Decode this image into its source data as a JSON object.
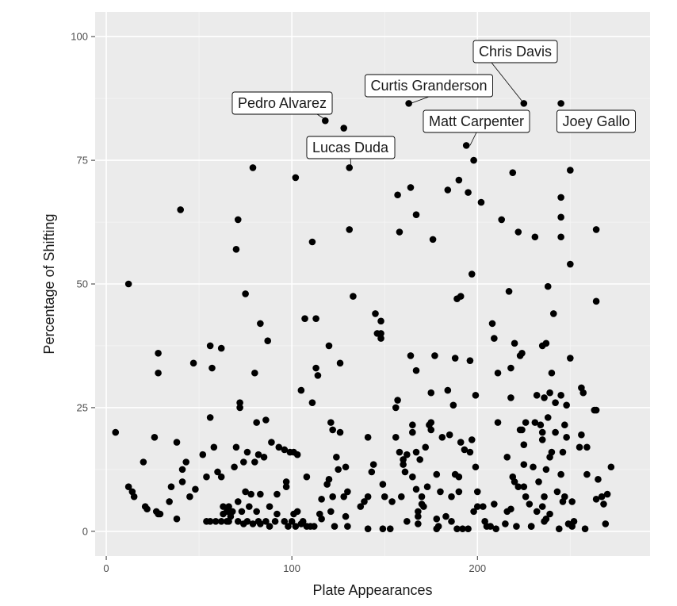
{
  "chart_data": {
    "type": "scatter",
    "title": "",
    "xlabel": "Plate Appearances",
    "ylabel": "Percentage of Shifting",
    "xlim": [
      -6,
      293
    ],
    "ylim": [
      -5,
      105
    ],
    "x_ticks": [
      0,
      100,
      200
    ],
    "y_ticks": [
      0,
      25,
      50,
      75,
      100
    ],
    "grid": true,
    "colors": {
      "panel": "#ebebeb",
      "grid_major": "#ffffff",
      "grid_minor": "#f5f5f5",
      "point": "#000000",
      "tick": "#4d4d4d"
    },
    "annotations": [
      {
        "text": "Chris Davis",
        "x": 225,
        "y": 86.5
      },
      {
        "text": "Curtis Granderson",
        "x": 164,
        "y": 86.5
      },
      {
        "text": "Pedro Alvarez",
        "x": 119,
        "y": 83
      },
      {
        "text": "Matt Carpenter",
        "x": 196,
        "y": 78
      },
      {
        "text": "Joey Gallo",
        "x": 246,
        "y": 86.5
      },
      {
        "text": "Lucas Duda",
        "x": 132,
        "y": 73.5
      }
    ],
    "points": [
      [
        5,
        20
      ],
      [
        12,
        50
      ],
      [
        12,
        9
      ],
      [
        14,
        8
      ],
      [
        15,
        7
      ],
      [
        20,
        14
      ],
      [
        21,
        5
      ],
      [
        22,
        4.5
      ],
      [
        26,
        19
      ],
      [
        27,
        4
      ],
      [
        28,
        3.5
      ],
      [
        28,
        36
      ],
      [
        28,
        32
      ],
      [
        29,
        3.5
      ],
      [
        34,
        6
      ],
      [
        35,
        9
      ],
      [
        38,
        18
      ],
      [
        38,
        2.5
      ],
      [
        40,
        65
      ],
      [
        41,
        10
      ],
      [
        41,
        12.5
      ],
      [
        43,
        14
      ],
      [
        45,
        7
      ],
      [
        47,
        34
      ],
      [
        48,
        8.5
      ],
      [
        52,
        15.5
      ],
      [
        54,
        2
      ],
      [
        54,
        11
      ],
      [
        56,
        2
      ],
      [
        56,
        23
      ],
      [
        56,
        37.5
      ],
      [
        57,
        33
      ],
      [
        58,
        17
      ],
      [
        59,
        2
      ],
      [
        60,
        12
      ],
      [
        62,
        37
      ],
      [
        62,
        2
      ],
      [
        62,
        11
      ],
      [
        63,
        5
      ],
      [
        63,
        3.5
      ],
      [
        65,
        2
      ],
      [
        65,
        4
      ],
      [
        66,
        2
      ],
      [
        66,
        5
      ],
      [
        67,
        3
      ],
      [
        68,
        4
      ],
      [
        69,
        13
      ],
      [
        70,
        57
      ],
      [
        70,
        17
      ],
      [
        71,
        63
      ],
      [
        71,
        6
      ],
      [
        71,
        2
      ],
      [
        72,
        26
      ],
      [
        72,
        25
      ],
      [
        73,
        4
      ],
      [
        74,
        1.5
      ],
      [
        74,
        14
      ],
      [
        75,
        48
      ],
      [
        75,
        8
      ],
      [
        76,
        16
      ],
      [
        76,
        2
      ],
      [
        77,
        5
      ],
      [
        78,
        7.5
      ],
      [
        79,
        73.5
      ],
      [
        79,
        1.5
      ],
      [
        80,
        32
      ],
      [
        80,
        14
      ],
      [
        81,
        22
      ],
      [
        81,
        4
      ],
      [
        82,
        2
      ],
      [
        82,
        15.5
      ],
      [
        83,
        42
      ],
      [
        83,
        7.5
      ],
      [
        83,
        1.5
      ],
      [
        85,
        15
      ],
      [
        86,
        22.5
      ],
      [
        86,
        2
      ],
      [
        87,
        38.5
      ],
      [
        88,
        5
      ],
      [
        88,
        1
      ],
      [
        89,
        18
      ],
      [
        91,
        2
      ],
      [
        92,
        7.5
      ],
      [
        92,
        3.5
      ],
      [
        93,
        17
      ],
      [
        96,
        16.5
      ],
      [
        96,
        2
      ],
      [
        97,
        10
      ],
      [
        97,
        9
      ],
      [
        98,
        1
      ],
      [
        99,
        16
      ],
      [
        100,
        2
      ],
      [
        101,
        3.5
      ],
      [
        101,
        16
      ],
      [
        102,
        1
      ],
      [
        102,
        71.5
      ],
      [
        103,
        15.5
      ],
      [
        103,
        4
      ],
      [
        105,
        28.5
      ],
      [
        105,
        1.5
      ],
      [
        106,
        2
      ],
      [
        107,
        43
      ],
      [
        108,
        11
      ],
      [
        108,
        1
      ],
      [
        110,
        1
      ],
      [
        111,
        58.5
      ],
      [
        111,
        26
      ],
      [
        112,
        1
      ],
      [
        113,
        43
      ],
      [
        113,
        33
      ],
      [
        114,
        31.5
      ],
      [
        115,
        3.5
      ],
      [
        116,
        6.5
      ],
      [
        116,
        2.5
      ],
      [
        118,
        83
      ],
      [
        119,
        9.5
      ],
      [
        120,
        37.5
      ],
      [
        120,
        10.5
      ],
      [
        121,
        4
      ],
      [
        121,
        22
      ],
      [
        122,
        20.5
      ],
      [
        122,
        7
      ],
      [
        123,
        1
      ],
      [
        124,
        15
      ],
      [
        125,
        12.5
      ],
      [
        126,
        34
      ],
      [
        126,
        20
      ],
      [
        128,
        81.5
      ],
      [
        128,
        7
      ],
      [
        129,
        3
      ],
      [
        129,
        13
      ],
      [
        130,
        1
      ],
      [
        130,
        8
      ],
      [
        131,
        73.5
      ],
      [
        131,
        61
      ],
      [
        133,
        47.5
      ],
      [
        137,
        5
      ],
      [
        139,
        6
      ],
      [
        141,
        19
      ],
      [
        141,
        7
      ],
      [
        141,
        0.5
      ],
      [
        143,
        12
      ],
      [
        144,
        13.5
      ],
      [
        145,
        44
      ],
      [
        146,
        40
      ],
      [
        148,
        40
      ],
      [
        148,
        39
      ],
      [
        148,
        42.5
      ],
      [
        149,
        0.5
      ],
      [
        149,
        9.5
      ],
      [
        150,
        7
      ],
      [
        153,
        0.5
      ],
      [
        154,
        6
      ],
      [
        156,
        25
      ],
      [
        156,
        19
      ],
      [
        157,
        68
      ],
      [
        157,
        26.5
      ],
      [
        158,
        60.5
      ],
      [
        158,
        16
      ],
      [
        159,
        7
      ],
      [
        160,
        14.5
      ],
      [
        160,
        13.5
      ],
      [
        161,
        12
      ],
      [
        162,
        15.5
      ],
      [
        162,
        2
      ],
      [
        163,
        86.5
      ],
      [
        164,
        69.5
      ],
      [
        164,
        35.5
      ],
      [
        165,
        11
      ],
      [
        165,
        21.5
      ],
      [
        165,
        20
      ],
      [
        167,
        64
      ],
      [
        167,
        32.5
      ],
      [
        167,
        16
      ],
      [
        167,
        8.5
      ],
      [
        168,
        1.5
      ],
      [
        168,
        3
      ],
      [
        168,
        4
      ],
      [
        169,
        14.5
      ],
      [
        170,
        7
      ],
      [
        170,
        5.5
      ],
      [
        171,
        5
      ],
      [
        172,
        17
      ],
      [
        173,
        9
      ],
      [
        174,
        21.5
      ],
      [
        175,
        22
      ],
      [
        175,
        28
      ],
      [
        175,
        20.5
      ],
      [
        176,
        59
      ],
      [
        177,
        35.5
      ],
      [
        178,
        2.5
      ],
      [
        178,
        0.5
      ],
      [
        178,
        11.5
      ],
      [
        179,
        1
      ],
      [
        180,
        8
      ],
      [
        181,
        19
      ],
      [
        183,
        3
      ],
      [
        184,
        69
      ],
      [
        184,
        28.5
      ],
      [
        185,
        19.5
      ],
      [
        186,
        7
      ],
      [
        186,
        2
      ],
      [
        187,
        25.5
      ],
      [
        188,
        35
      ],
      [
        188,
        11.5
      ],
      [
        189,
        47
      ],
      [
        189,
        0.5
      ],
      [
        190,
        71
      ],
      [
        190,
        8
      ],
      [
        190,
        11
      ],
      [
        191,
        47.5
      ],
      [
        191,
        18
      ],
      [
        192,
        0.5
      ],
      [
        193,
        16.5
      ],
      [
        194,
        78
      ],
      [
        195,
        68.5
      ],
      [
        195,
        0.5
      ],
      [
        196,
        34.5
      ],
      [
        196,
        16
      ],
      [
        197,
        52
      ],
      [
        197,
        18.5
      ],
      [
        198,
        75
      ],
      [
        198,
        4
      ],
      [
        199,
        27.5
      ],
      [
        199,
        13
      ],
      [
        200,
        8
      ],
      [
        200,
        5
      ],
      [
        202,
        66.5
      ],
      [
        203,
        5
      ],
      [
        204,
        2
      ],
      [
        205,
        1
      ],
      [
        207,
        1
      ],
      [
        208,
        42
      ],
      [
        209,
        39
      ],
      [
        209,
        5.5
      ],
      [
        210,
        0.5
      ],
      [
        211,
        32
      ],
      [
        211,
        22
      ],
      [
        213,
        63
      ],
      [
        215,
        1.5
      ],
      [
        216,
        4
      ],
      [
        216,
        15
      ],
      [
        217,
        48.5
      ],
      [
        218,
        33
      ],
      [
        218,
        27
      ],
      [
        218,
        4.5
      ],
      [
        219,
        72.5
      ],
      [
        219,
        11
      ],
      [
        220,
        38
      ],
      [
        220,
        10
      ],
      [
        221,
        1
      ],
      [
        222,
        9
      ],
      [
        222,
        60.5
      ],
      [
        223,
        35.5
      ],
      [
        223,
        20.5
      ],
      [
        224,
        36
      ],
      [
        224,
        20.5
      ],
      [
        225,
        86.5
      ],
      [
        225,
        17.5
      ],
      [
        225,
        9
      ],
      [
        225,
        13.5
      ],
      [
        226,
        7
      ],
      [
        226,
        22
      ],
      [
        228,
        5.5
      ],
      [
        229,
        1
      ],
      [
        229,
        1
      ],
      [
        230,
        13
      ],
      [
        231,
        59.5
      ],
      [
        231,
        22
      ],
      [
        232,
        27.5
      ],
      [
        232,
        4
      ],
      [
        233,
        10
      ],
      [
        234,
        21.5
      ],
      [
        235,
        37.5
      ],
      [
        235,
        20
      ],
      [
        235,
        18.5
      ],
      [
        235,
        5
      ],
      [
        236,
        27
      ],
      [
        236,
        7
      ],
      [
        236,
        2
      ],
      [
        237,
        38
      ],
      [
        237,
        12.5
      ],
      [
        237,
        2.5
      ],
      [
        238,
        49.5
      ],
      [
        238,
        23
      ],
      [
        239,
        28
      ],
      [
        239,
        15
      ],
      [
        239,
        3.5
      ],
      [
        240,
        32
      ],
      [
        240,
        16
      ],
      [
        241,
        44
      ],
      [
        242,
        26
      ],
      [
        242,
        20
      ],
      [
        243,
        8
      ],
      [
        244,
        0.5
      ],
      [
        245,
        86.5
      ],
      [
        245,
        63.5
      ],
      [
        245,
        59.5
      ],
      [
        245,
        67.5
      ],
      [
        245,
        27.5
      ],
      [
        245,
        11.5
      ],
      [
        246,
        6
      ],
      [
        246,
        16
      ],
      [
        247,
        21.5
      ],
      [
        247,
        7
      ],
      [
        248,
        25.5
      ],
      [
        248,
        19
      ],
      [
        249,
        1.5
      ],
      [
        250,
        73
      ],
      [
        250,
        54
      ],
      [
        250,
        35
      ],
      [
        251,
        6
      ],
      [
        251,
        1
      ],
      [
        252,
        2
      ],
      [
        255,
        17
      ],
      [
        256,
        29
      ],
      [
        256,
        19.5
      ],
      [
        257,
        28
      ],
      [
        258,
        0.5
      ],
      [
        259,
        11.5
      ],
      [
        259,
        17
      ],
      [
        263,
        24.5
      ],
      [
        264,
        6.5
      ],
      [
        264,
        24.5
      ],
      [
        264,
        61
      ],
      [
        264,
        46.5
      ],
      [
        265,
        10.5
      ],
      [
        267,
        7
      ],
      [
        268,
        5.5
      ],
      [
        269,
        1.5
      ],
      [
        270,
        7.5
      ],
      [
        272,
        13
      ]
    ]
  }
}
